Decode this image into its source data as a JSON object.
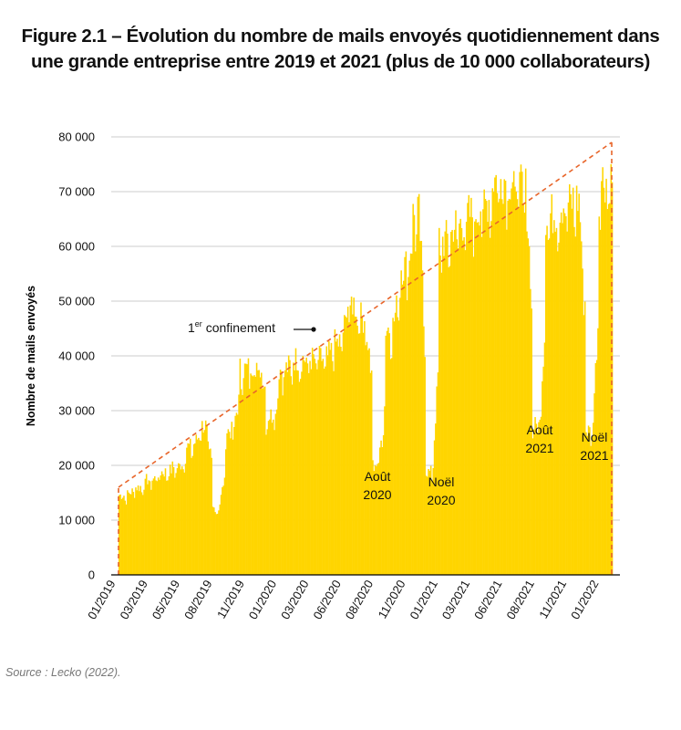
{
  "title_line1": "Figure 2.1 – Évolution du nombre de mails envoyés quotidiennement dans",
  "title_line2": "une grande entreprise entre 2019 et 2021 (plus de 10 000 collaborateurs)",
  "source": "Source : Lecko (2022).",
  "colors": {
    "bars": "#FFD500",
    "trend": "#E8652A",
    "grid": "#cccccc",
    "axis": "#000000"
  },
  "chart_data": {
    "type": "bar",
    "title": "Figure 2.1 – Évolution du nombre de mails envoyés quotidiennement dans une grande entreprise entre 2019 et 2021 (plus de 10 000 collaborateurs)",
    "xlabel": "",
    "ylabel": "Nombre de mails envoyés",
    "ylim": [
      0,
      80000
    ],
    "yticks": [
      0,
      10000,
      20000,
      30000,
      40000,
      50000,
      60000,
      70000,
      80000
    ],
    "ytick_labels": [
      "0",
      "10 000",
      "20 000",
      "30 000",
      "40 000",
      "50 000",
      "60 000",
      "70 000",
      "80 000"
    ],
    "xticks": [
      "01/2019",
      "03/2019",
      "05/2019",
      "08/2019",
      "11/2019",
      "01/2020",
      "03/2020",
      "06/2020",
      "08/2020",
      "11/2020",
      "01/2021",
      "03/2021",
      "06/2021",
      "08/2021",
      "11/2021",
      "01/2022"
    ],
    "grid": true,
    "series": [
      {
        "kind": "daily_envelope",
        "x": [
          "2019-01",
          "2019-02",
          "2019-03",
          "2019-04",
          "2019-05",
          "2019-06",
          "2019-07",
          "2019-08",
          "2019-09",
          "2019-10",
          "2019-11",
          "2019-12",
          "2020-01",
          "2020-02",
          "2020-03",
          "2020-04",
          "2020-05",
          "2020-06",
          "2020-07",
          "2020-08",
          "2020-09",
          "2020-10",
          "2020-11",
          "2020-12",
          "2021-01",
          "2021-02",
          "2021-03",
          "2021-04",
          "2021-05",
          "2021-06",
          "2021-07",
          "2021-08",
          "2021-09",
          "2021-10",
          "2021-11",
          "2021-12",
          "2022-01"
        ],
        "values": [
          15500,
          17000,
          18500,
          20000,
          21000,
          25000,
          29000,
          13000,
          28000,
          40000,
          41000,
          31000,
          40000,
          42000,
          42000,
          42000,
          45000,
          53000,
          50000,
          22000,
          48000,
          60000,
          70000,
          20000,
          65000,
          68000,
          70000,
          72000,
          77000,
          77000,
          75000,
          29000,
          70000,
          72000,
          73000,
          28000,
          77000
        ]
      },
      {
        "kind": "trend",
        "values": [
          16000,
          79000
        ]
      }
    ],
    "annotations": [
      {
        "lines": [
          "1er confinement"
        ],
        "superscript": "er",
        "base": "1",
        "rest": "confinement"
      },
      {
        "lines": [
          "Août",
          "2020"
        ]
      },
      {
        "lines": [
          "Noël",
          "2020"
        ]
      },
      {
        "lines": [
          "Août",
          "2021"
        ]
      },
      {
        "lines": [
          "Noël",
          "2021"
        ]
      }
    ]
  }
}
